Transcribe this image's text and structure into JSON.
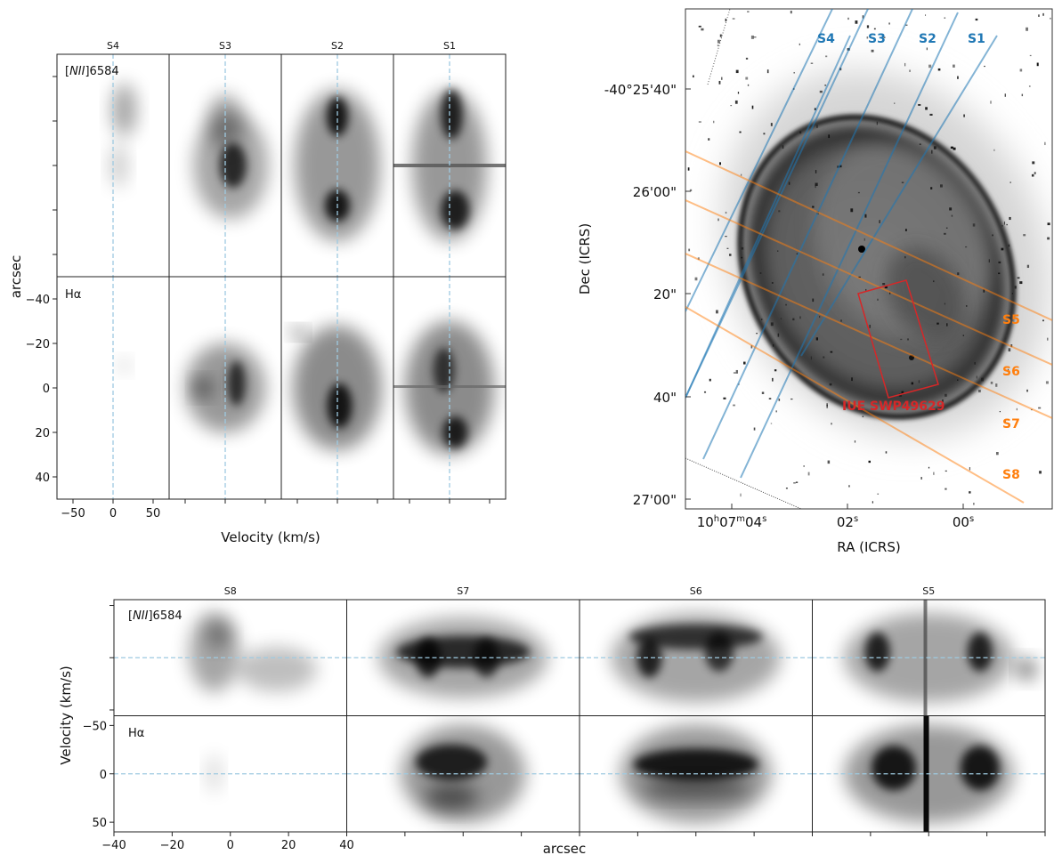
{
  "top_left": {
    "slit_titles": [
      "S4",
      "S3",
      "S2",
      "S1"
    ],
    "row_labels": [
      "[NII]6584",
      "Hα"
    ],
    "ylabel": "arcsec",
    "xlabel": "Velocity (km/s)",
    "yticks": [
      "40",
      "20",
      "0",
      "−20",
      "−40"
    ],
    "xticks": [
      "−50",
      "0",
      "50"
    ]
  },
  "bottom": {
    "slit_titles": [
      "S8",
      "S7",
      "S6",
      "S5"
    ],
    "row_labels": [
      "[NII]6584",
      "Hα"
    ],
    "ylabel": "Velocity (km/s)",
    "xlabel": "arcsec",
    "yticks": [
      "50",
      "0",
      "−50"
    ],
    "xticks": [
      "−40",
      "−20",
      "0",
      "20",
      "40"
    ]
  },
  "image_panel": {
    "xlabel": "RA (ICRS)",
    "ylabel": "Dec (ICRS)",
    "ra_ticks": [
      "10h07m04s",
      "02s",
      "00s"
    ],
    "dec_ticks": [
      "-40°25'40\"",
      "26'00\"",
      "20\"",
      "40\"",
      "27'00\""
    ],
    "blue_slits": [
      "S4",
      "S3",
      "S2",
      "S1"
    ],
    "orange_slits": [
      "S5",
      "S6",
      "S7",
      "S8"
    ],
    "aperture_label": "IUE SWP49629",
    "colors": {
      "blue_slit": "#1f77b4",
      "orange_slit": "#ff7f0e",
      "aperture": "#d62728",
      "zero_line": "#9ecae1"
    }
  },
  "chart_data": [
    {
      "type": "heatmap",
      "title": "",
      "panels": [
        "S4",
        "S3",
        "S2",
        "S1"
      ],
      "rows": [
        "[NII]6584",
        "Hα"
      ],
      "xlabel": "Velocity (km/s)",
      "ylabel": "arcsec",
      "xlim": [
        -70,
        70
      ],
      "ylim": [
        -50,
        50
      ],
      "xticks": [
        -50,
        0,
        50
      ],
      "yticks": [
        -40,
        -20,
        0,
        20,
        40
      ],
      "reference_line_x": 0
    },
    {
      "type": "heatmap",
      "title": "",
      "panels": [
        "S8",
        "S7",
        "S6",
        "S5"
      ],
      "rows": [
        "[NII]6584",
        "Hα"
      ],
      "xlabel": "arcsec",
      "ylabel": "Velocity (km/s)",
      "xlim": [
        -40,
        40
      ],
      "ylim": [
        -60,
        60
      ],
      "xticks": [
        -40,
        -20,
        0,
        20,
        40
      ],
      "yticks": [
        -50,
        0,
        50
      ],
      "reference_line_y": 0
    }
  ]
}
